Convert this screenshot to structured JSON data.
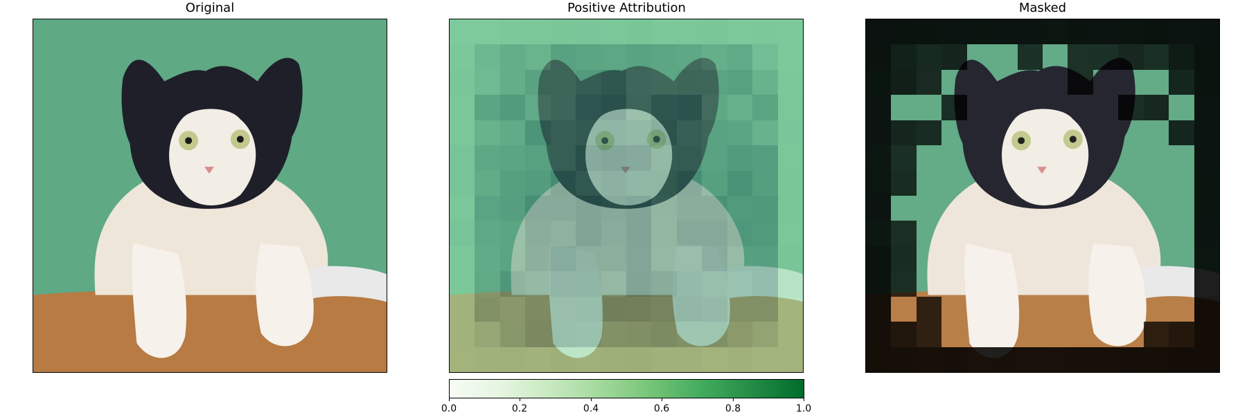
{
  "panels": [
    {
      "title": "Original"
    },
    {
      "title": "Positive Attribution"
    },
    {
      "title": "Masked"
    }
  ],
  "colorbar": {
    "colors": [
      "#f7fcf5",
      "#e5f5e0",
      "#c7e9c0",
      "#a1d99b",
      "#74c476",
      "#41ab5d",
      "#238b45",
      "#006d2c"
    ],
    "tick_labels": [
      "0.0",
      "0.2",
      "0.4",
      "0.6",
      "0.8",
      "1.0"
    ],
    "range": [
      0.0,
      1.0
    ]
  },
  "image": {
    "background_color": "#5fa985",
    "table_color": "#b77b43",
    "cat_fur_dark": "#1f1f2a",
    "cat_fur_light": "#f2ede5"
  }
}
